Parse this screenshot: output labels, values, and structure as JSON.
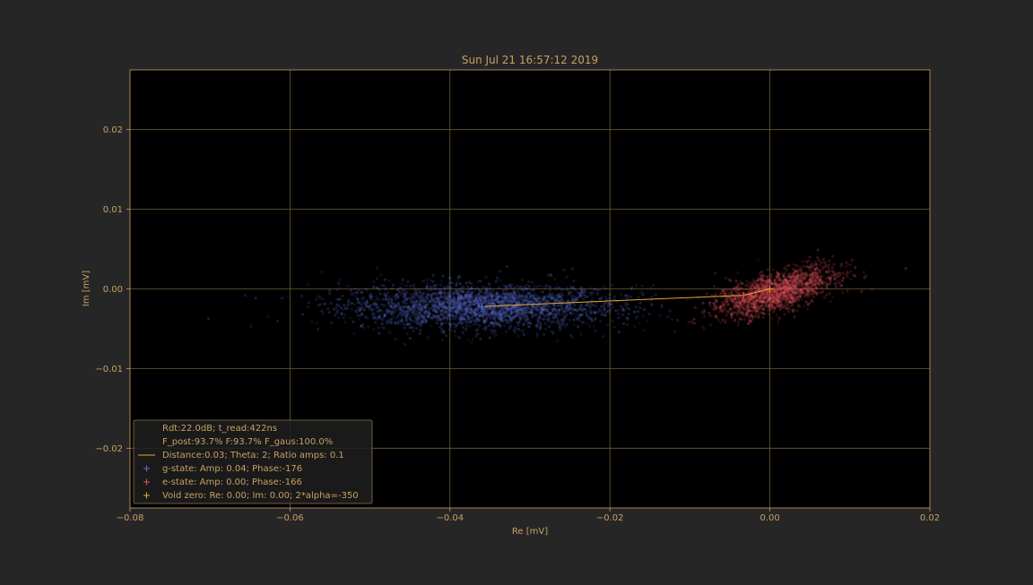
{
  "colors": {
    "figure_bg": "#262626",
    "axes_bg": "#000000",
    "text": "#c8a064",
    "grid": "#6b5a3c",
    "spine": "#c8a064",
    "g_state": "#5a6cd2",
    "e_state": "#e2515a",
    "distance_line": "#e6a52d",
    "void_zero": "#e6a52d",
    "legend_bg": "#1e1e1e",
    "legend_edge": "#8a7350"
  },
  "chart_data": {
    "type": "scatter",
    "title": "Sun Jul 21 16:57:12 2019",
    "xlabel": "Re [mV]",
    "ylabel": "Im [mV]",
    "xlim": [
      -0.08,
      0.02
    ],
    "ylim": [
      -0.0275,
      0.0275
    ],
    "x_ticks": [
      -0.08,
      -0.06,
      -0.04,
      -0.02,
      0.0,
      0.02
    ],
    "x_tick_labels": [
      "−0.08",
      "−0.06",
      "−0.04",
      "−0.02",
      "0.00",
      "0.02"
    ],
    "y_ticks": [
      -0.02,
      -0.01,
      0.0,
      0.01,
      0.02
    ],
    "y_tick_labels": [
      "−0.02",
      "−0.01",
      "0.00",
      "0.01",
      "0.02"
    ],
    "grid": true,
    "legend_placement": "lower-left",
    "series": [
      {
        "name": "g-state",
        "kind": "scatter-cloud",
        "color": "#5a6cd2",
        "center": [
          -0.036,
          -0.0022
        ],
        "spread": [
          0.0085,
          0.0014
        ],
        "curvature": -6e-06
      },
      {
        "name": "e-state",
        "kind": "scatter-cloud",
        "color": "#e2515a",
        "center": [
          0.0007,
          -0.0004
        ],
        "spread": [
          0.0038,
          0.0012
        ],
        "curvature": 0.0
      }
    ],
    "markers": [
      {
        "name": "g-state",
        "x": -0.036,
        "y": -0.0022,
        "color": "#5a6cd2"
      },
      {
        "name": "e-state",
        "x": -0.0033,
        "y": -0.0008,
        "color": "#e2515a"
      },
      {
        "name": "void-zero",
        "x": 0.0,
        "y": 0.0,
        "color": "#e6a52d"
      }
    ],
    "distance_line": {
      "points": [
        [
          -0.036,
          -0.0022
        ],
        [
          -0.0033,
          -0.0008
        ],
        [
          0.0,
          0.0
        ]
      ]
    },
    "legend": {
      "lines": [
        "Rdt:22.0dB; t_read:422ns",
        "F_post:93.7% F:93.7% F_gaus:100.0%",
        "Distance:0.03; Theta: 2; Ratio amps:  0.1",
        "g-state: Amp: 0.04; Phase:-176",
        "e-state: Amp: 0.00; Phase:-166",
        "Void zero: Re: 0.00; Im: 0.00; 2*alpha=-350"
      ],
      "symbols": [
        "none",
        "none",
        "line",
        "plus-g",
        "plus-e",
        "plus-void"
      ]
    }
  }
}
